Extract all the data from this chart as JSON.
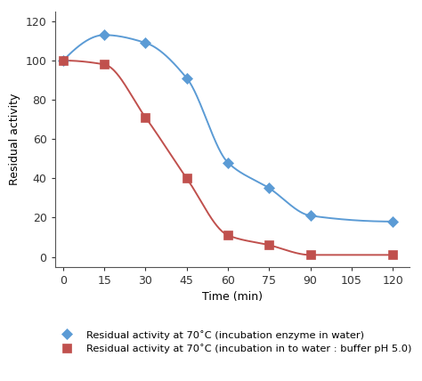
{
  "blue_x": [
    0,
    15,
    30,
    45,
    60,
    75,
    90,
    120
  ],
  "blue_y": [
    100,
    113,
    109,
    91,
    48,
    35,
    21,
    18
  ],
  "red_x": [
    0,
    15,
    30,
    45,
    60,
    75,
    90,
    120
  ],
  "red_y": [
    100,
    98,
    71,
    40,
    11,
    6,
    1,
    1
  ],
  "blue_color": "#5b9bd5",
  "red_color": "#c0504d",
  "xlabel": "Time (min)",
  "ylabel": "Residual activity",
  "xlim": [
    -3,
    126
  ],
  "ylim": [
    -5,
    125
  ],
  "xticks": [
    0,
    15,
    30,
    45,
    60,
    75,
    90,
    105,
    120
  ],
  "yticks": [
    0,
    20,
    40,
    60,
    80,
    100,
    120
  ],
  "legend_blue": "Residual activity at 70˚C (incubation enzyme in water)",
  "legend_red": "Residual activity at 70˚C (incubation in to water : buffer pH 5.0)",
  "bg_color": "#ffffff",
  "font_size": 9
}
